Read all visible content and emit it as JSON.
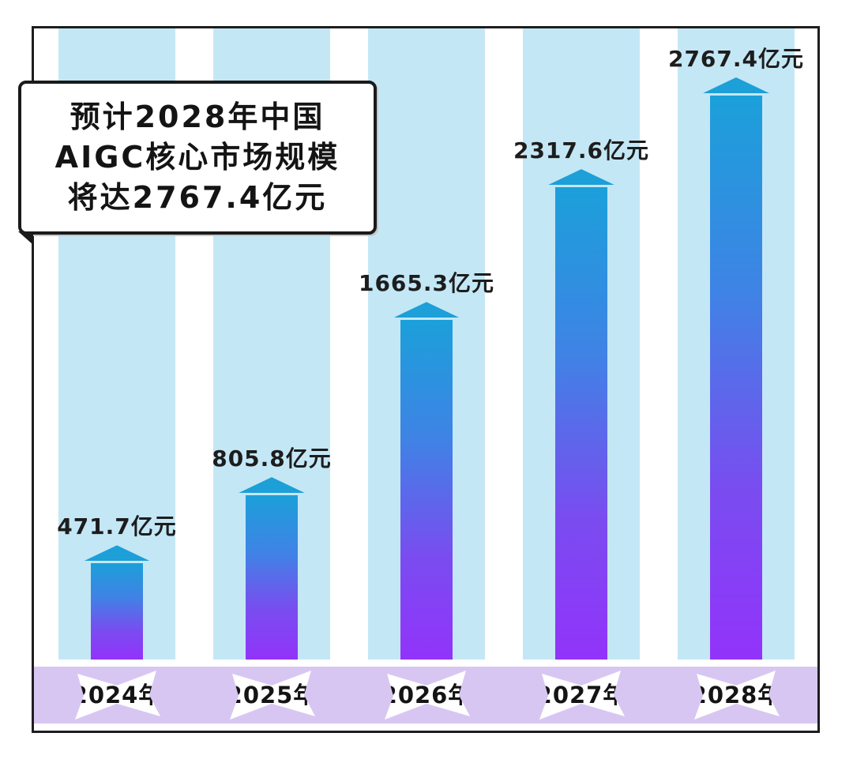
{
  "title_box": {
    "lines": [
      "预计2028年中国",
      "AIGC核心市场规模",
      "将达2767.4亿元"
    ]
  },
  "chart_data": {
    "type": "bar",
    "title": "预计2028年中国AIGC核心市场规模将达2767.4亿元",
    "categories": [
      "2024年",
      "2025年",
      "2026年",
      "2027年",
      "2028年"
    ],
    "values": [
      471.7,
      805.8,
      1665.3,
      2317.6,
      2767.4
    ],
    "labels": [
      "471.7亿元",
      "805.8亿元",
      "1665.3亿元",
      "2317.6亿元",
      "2767.4亿元"
    ],
    "unit": "亿元",
    "xlabel": "",
    "ylabel": "",
    "ylim": [
      0,
      2767.4
    ],
    "grid": false,
    "legend": false,
    "colors": {
      "bar_gradient": [
        "#1ba0da",
        "#3f83e5",
        "#7a4cf0",
        "#9233fa"
      ],
      "bar_cap": "#1d9fd8",
      "column_bg": "#c4e7f5",
      "band_bg": "#d8c6f2",
      "badge_bg": "#ffffff",
      "text": "#1d1d1d",
      "frame_border": "#1e1e1e"
    }
  }
}
